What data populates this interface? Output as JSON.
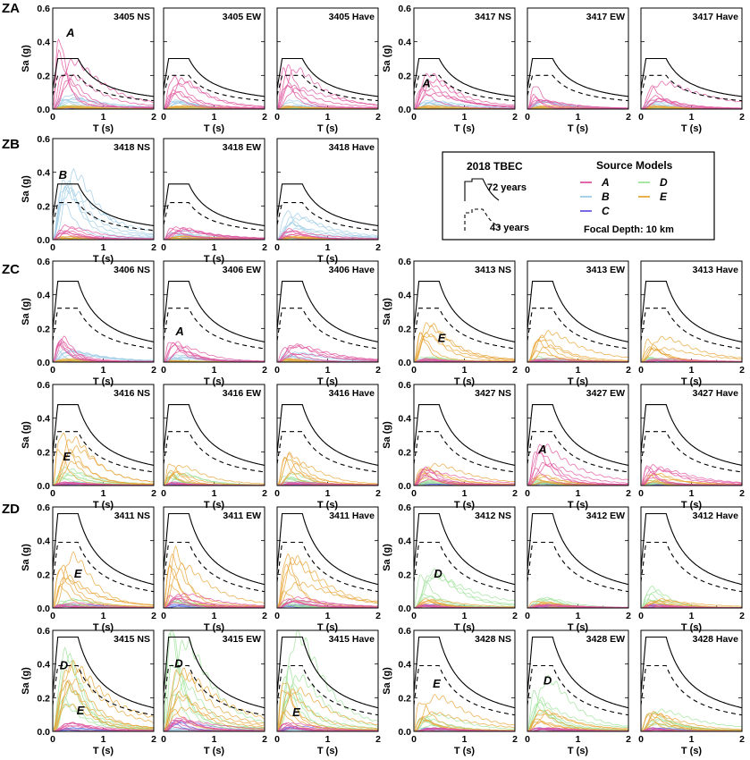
{
  "figure": {
    "zones": [
      {
        "label": "ZA"
      },
      {
        "label": "ZB"
      },
      {
        "label": "ZC"
      },
      {
        "label": "ZD"
      }
    ]
  },
  "colors": {
    "A": "#e0569f",
    "B": "#9fcde6",
    "C": "#6a5ae0",
    "D": "#9fe39a",
    "E": "#e8a63a",
    "code_curve": "#000000"
  },
  "legend": {
    "code_title": "2018 TBEC",
    "code_label_solid": "72 years",
    "code_label_dashed": "43 years",
    "models_title": "Source Models",
    "models": [
      {
        "key": "A",
        "label": "A",
        "color": "#e0569f"
      },
      {
        "key": "D",
        "label": "D",
        "color": "#9fe39a"
      },
      {
        "key": "B",
        "label": "B",
        "color": "#9fcde6"
      },
      {
        "key": "E",
        "label": "E",
        "color": "#e8a63a"
      },
      {
        "key": "C",
        "label": "C",
        "color": "#6a5ae0"
      }
    ],
    "depth_label": "Focal Depth: 10 km"
  },
  "axes": {
    "xlabel": "T (s)",
    "ylabel": "Sa (g)",
    "xticks": [
      "0",
      "1",
      "2"
    ],
    "yticks": [
      "0.0",
      "0.2",
      "0.4",
      "0.6"
    ]
  },
  "chart_data": {
    "type": "line",
    "xlabel": "T (s)",
    "ylabel": "Sa (g)",
    "xlim": [
      0,
      2
    ],
    "ylim": [
      0,
      0.6
    ],
    "code_spectra": {
      "ZA": {
        "plateau_72": 0.3,
        "plateau_43": 0.2
      },
      "ZB": {
        "plateau_72": 0.33,
        "plateau_43": 0.22
      },
      "ZC": {
        "plateau_72": 0.48,
        "plateau_43": 0.32
      },
      "ZD": {
        "plateau_72": 0.56,
        "plateau_43": 0.39
      }
    },
    "panels": [
      {
        "station": "3405 NS",
        "zone": "ZA",
        "zone_label": true,
        "ylabels": true,
        "annotations": [
          {
            "text": "A",
            "t": 0.35,
            "sa": 0.43
          }
        ],
        "peaks": {
          "A": 0.42,
          "B": 0.08,
          "C": 0.01,
          "D": 0.02,
          "E": 0.02
        }
      },
      {
        "station": "3405 EW",
        "zone": "ZA",
        "ylabels": false,
        "annotations": [],
        "peaks": {
          "A": 0.18,
          "B": 0.05,
          "C": 0.01,
          "D": 0.01,
          "E": 0.02
        }
      },
      {
        "station": "3405 Have",
        "zone": "ZA",
        "ylabels": false,
        "annotations": [],
        "peaks": {
          "A": 0.24,
          "B": 0.05,
          "C": 0.01,
          "D": 0.01,
          "E": 0.02
        }
      },
      {
        "station": "3417 NS",
        "zone": "ZA",
        "ylabels": true,
        "annotations": [
          {
            "text": "A",
            "t": 0.25,
            "sa": 0.13
          }
        ],
        "peaks": {
          "A": 0.2,
          "B": 0.05,
          "C": 0.01,
          "D": 0.01,
          "E": 0.02
        }
      },
      {
        "station": "3417 EW",
        "zone": "ZA",
        "ylabels": false,
        "annotations": [],
        "peaks": {
          "A": 0.14,
          "B": 0.05,
          "C": 0.01,
          "D": 0.01,
          "E": 0.02
        }
      },
      {
        "station": "3417 Have",
        "zone": "ZA",
        "ylabels": false,
        "annotations": [],
        "peaks": {
          "A": 0.15,
          "B": 0.05,
          "C": 0.01,
          "D": 0.01,
          "E": 0.02
        }
      },
      {
        "station": "3418 NS",
        "zone": "ZB",
        "zone_label": true,
        "ylabels": true,
        "annotations": [
          {
            "text": "B",
            "t": 0.2,
            "sa": 0.36
          }
        ],
        "peaks": {
          "A": 0.08,
          "B": 0.38,
          "C": 0.01,
          "D": 0.01,
          "E": 0.02
        }
      },
      {
        "station": "3418 EW",
        "zone": "ZB",
        "ylabels": false,
        "annotations": [],
        "peaks": {
          "A": 0.07,
          "B": 0.05,
          "C": 0.01,
          "D": 0.01,
          "E": 0.02
        }
      },
      {
        "station": "3418 Have",
        "zone": "ZB",
        "ylabels": false,
        "annotations": [],
        "peaks": {
          "A": 0.06,
          "B": 0.16,
          "C": 0.01,
          "D": 0.01,
          "E": 0.02
        }
      },
      {
        "station": "3406 NS",
        "zone": "ZC",
        "zone_label": true,
        "ylabels": true,
        "annotations": [],
        "peaks": {
          "A": 0.14,
          "B": 0.07,
          "C": 0.01,
          "D": 0.02,
          "E": 0.02
        }
      },
      {
        "station": "3406 EW",
        "zone": "ZC",
        "ylabels": false,
        "annotations": [
          {
            "text": "A",
            "t": 0.32,
            "sa": 0.16
          }
        ],
        "peaks": {
          "A": 0.12,
          "B": 0.04,
          "C": 0.01,
          "D": 0.01,
          "E": 0.01
        }
      },
      {
        "station": "3406 Have",
        "zone": "ZC",
        "ylabels": false,
        "annotations": [],
        "peaks": {
          "A": 0.1,
          "B": 0.06,
          "C": 0.01,
          "D": 0.01,
          "E": 0.02
        }
      },
      {
        "station": "3413 NS",
        "zone": "ZC",
        "ylabels": true,
        "annotations": [
          {
            "text": "E",
            "t": 0.55,
            "sa": 0.12
          }
        ],
        "peaks": {
          "A": 0.02,
          "B": 0.02,
          "C": 0.01,
          "D": 0.03,
          "E": 0.22
        }
      },
      {
        "station": "3413 EW",
        "zone": "ZC",
        "ylabels": false,
        "annotations": [],
        "peaks": {
          "A": 0.02,
          "B": 0.02,
          "C": 0.01,
          "D": 0.03,
          "E": 0.17
        }
      },
      {
        "station": "3413 Have",
        "zone": "ZC",
        "ylabels": false,
        "annotations": [],
        "peaks": {
          "A": 0.02,
          "B": 0.02,
          "C": 0.01,
          "D": 0.03,
          "E": 0.14
        }
      },
      {
        "station": "3416 NS",
        "zone": "ZC",
        "ylabels": true,
        "annotations": [
          {
            "text": "E",
            "t": 0.28,
            "sa": 0.15
          }
        ],
        "peaks": {
          "A": 0.02,
          "B": 0.02,
          "C": 0.01,
          "D": 0.1,
          "E": 0.3
        }
      },
      {
        "station": "3416 EW",
        "zone": "ZC",
        "ylabels": false,
        "annotations": [],
        "peaks": {
          "A": 0.02,
          "B": 0.02,
          "C": 0.01,
          "D": 0.08,
          "E": 0.13
        }
      },
      {
        "station": "3416 Have",
        "zone": "ZC",
        "ylabels": false,
        "annotations": [],
        "peaks": {
          "A": 0.02,
          "B": 0.02,
          "C": 0.01,
          "D": 0.07,
          "E": 0.18
        }
      },
      {
        "station": "3427 NS",
        "zone": "ZC",
        "ylabels": true,
        "annotations": [],
        "peaks": {
          "A": 0.1,
          "B": 0.02,
          "C": 0.01,
          "D": 0.03,
          "E": 0.12
        }
      },
      {
        "station": "3427 EW",
        "zone": "ZC",
        "ylabels": false,
        "annotations": [
          {
            "text": "A",
            "t": 0.3,
            "sa": 0.19
          }
        ],
        "peaks": {
          "A": 0.23,
          "B": 0.02,
          "C": 0.01,
          "D": 0.03,
          "E": 0.06
        }
      },
      {
        "station": "3427 Have",
        "zone": "ZC",
        "ylabels": false,
        "annotations": [],
        "peaks": {
          "A": 0.12,
          "B": 0.02,
          "C": 0.01,
          "D": 0.03,
          "E": 0.07
        }
      },
      {
        "station": "3411 NS",
        "zone": "ZD",
        "zone_label": true,
        "ylabels": true,
        "annotations": [
          {
            "text": "E",
            "t": 0.5,
            "sa": 0.18
          }
        ],
        "peaks": {
          "A": 0.03,
          "B": 0.02,
          "C": 0.02,
          "D": 0.05,
          "E": 0.3
        }
      },
      {
        "station": "3411 EW",
        "zone": "ZD",
        "ylabels": false,
        "annotations": [],
        "peaks": {
          "A": 0.08,
          "B": 0.02,
          "C": 0.02,
          "D": 0.05,
          "E": 0.33
        }
      },
      {
        "station": "3411 Have",
        "zone": "ZD",
        "ylabels": false,
        "annotations": [],
        "peaks": {
          "A": 0.06,
          "B": 0.02,
          "C": 0.02,
          "D": 0.05,
          "E": 0.3
        }
      },
      {
        "station": "3412 NS",
        "zone": "ZD",
        "ylabels": true,
        "annotations": [
          {
            "text": "D",
            "t": 0.48,
            "sa": 0.18
          }
        ],
        "peaks": {
          "A": 0.02,
          "B": 0.02,
          "C": 0.02,
          "D": 0.21,
          "E": 0.05
        }
      },
      {
        "station": "3412 EW",
        "zone": "ZD",
        "ylabels": false,
        "annotations": [],
        "peaks": {
          "A": 0.02,
          "B": 0.02,
          "C": 0.02,
          "D": 0.06,
          "E": 0.04
        }
      },
      {
        "station": "3412 Have",
        "zone": "ZD",
        "ylabels": false,
        "annotations": [],
        "peaks": {
          "A": 0.02,
          "B": 0.02,
          "C": 0.02,
          "D": 0.12,
          "E": 0.05
        }
      },
      {
        "station": "3415 NS",
        "zone": "ZD",
        "ylabels": true,
        "annotations": [
          {
            "text": "D",
            "t": 0.22,
            "sa": 0.37
          },
          {
            "text": "E",
            "t": 0.55,
            "sa": 0.1
          }
        ],
        "peaks": {
          "A": 0.05,
          "B": 0.02,
          "C": 0.02,
          "D": 0.45,
          "E": 0.38
        }
      },
      {
        "station": "3415 EW",
        "zone": "ZD",
        "ylabels": false,
        "annotations": [
          {
            "text": "D",
            "t": 0.3,
            "sa": 0.38
          }
        ],
        "peaks": {
          "A": 0.08,
          "B": 0.02,
          "C": 0.06,
          "D": 0.6,
          "E": 0.35
        }
      },
      {
        "station": "3415 Have",
        "zone": "ZD",
        "ylabels": false,
        "annotations": [
          {
            "text": "E",
            "t": 0.38,
            "sa": 0.09
          }
        ],
        "peaks": {
          "A": 0.05,
          "B": 0.02,
          "C": 0.03,
          "D": 0.55,
          "E": 0.3
        }
      },
      {
        "station": "3428 NS",
        "zone": "ZD",
        "ylabels": true,
        "annotations": [
          {
            "text": "E",
            "t": 0.45,
            "sa": 0.26
          }
        ],
        "peaks": {
          "A": 0.02,
          "B": 0.02,
          "C": 0.02,
          "D": 0.1,
          "E": 0.2
        }
      },
      {
        "station": "3428 EW",
        "zone": "ZD",
        "ylabels": false,
        "annotations": [
          {
            "text": "D",
            "t": 0.4,
            "sa": 0.28
          }
        ],
        "peaks": {
          "A": 0.02,
          "B": 0.02,
          "C": 0.02,
          "D": 0.3,
          "E": 0.12
        }
      },
      {
        "station": "3428 Have",
        "zone": "ZD",
        "ylabels": false,
        "annotations": [],
        "peaks": {
          "A": 0.02,
          "B": 0.02,
          "C": 0.02,
          "D": 0.12,
          "E": 0.11
        }
      }
    ]
  }
}
